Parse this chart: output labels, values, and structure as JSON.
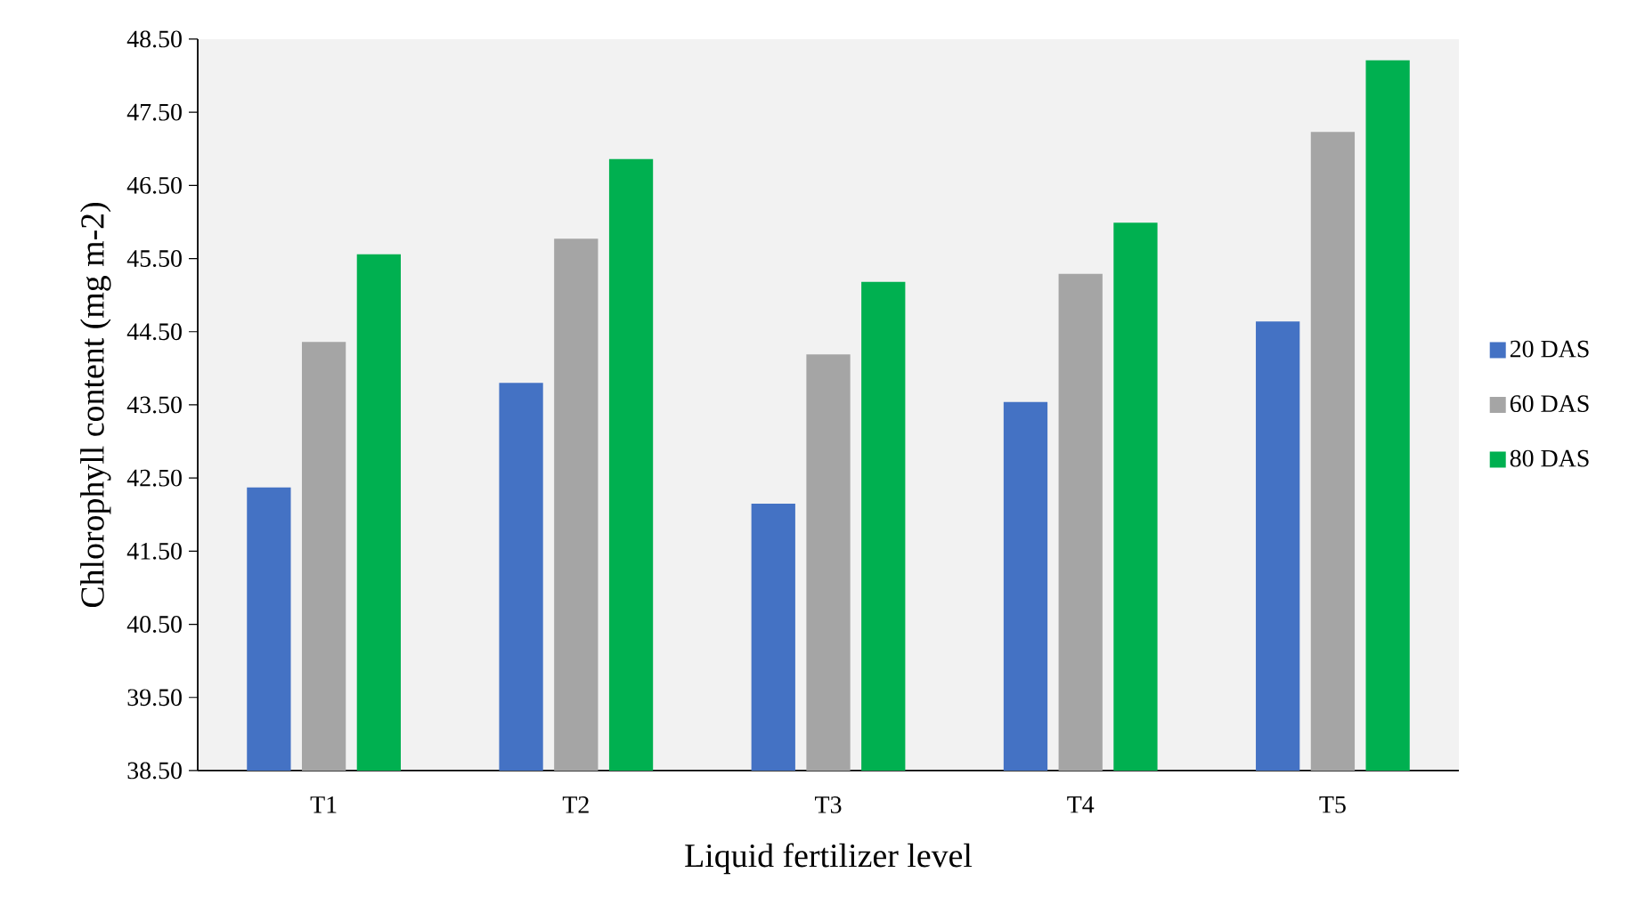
{
  "chart_data": {
    "type": "bar",
    "xlabel": "Liquid fertilizer level",
    "ylabel": "Chlorophyll content (mg m-2)",
    "categories": [
      "T1",
      "T2",
      "T3",
      "T4",
      "T5"
    ],
    "series": [
      {
        "name": "20 DAS",
        "color": "#4472c4",
        "values": [
          42.37,
          43.8,
          42.15,
          43.54,
          44.64
        ]
      },
      {
        "name": "60 DAS",
        "color": "#a5a5a5",
        "values": [
          44.36,
          45.77,
          44.19,
          45.29,
          47.23
        ]
      },
      {
        "name": "80 DAS",
        "color": "#00b050",
        "values": [
          45.56,
          46.86,
          45.18,
          45.99,
          48.21
        ]
      }
    ],
    "ylim": [
      38.5,
      48.5
    ],
    "yticks": [
      {
        "value": 38.5,
        "label": "38.50"
      },
      {
        "value": 39.5,
        "label": "39.50"
      },
      {
        "value": 40.5,
        "label": "40.50"
      },
      {
        "value": 41.5,
        "label": "41.50"
      },
      {
        "value": 42.5,
        "label": "42.50"
      },
      {
        "value": 43.5,
        "label": "43.50"
      },
      {
        "value": 44.5,
        "label": "44.50"
      },
      {
        "value": 45.5,
        "label": "45.50"
      },
      {
        "value": 46.5,
        "label": "46.50"
      },
      {
        "value": 47.5,
        "label": "47.50"
      },
      {
        "value": 48.5,
        "label": "48.50"
      }
    ],
    "grid": false,
    "legend": "right"
  }
}
